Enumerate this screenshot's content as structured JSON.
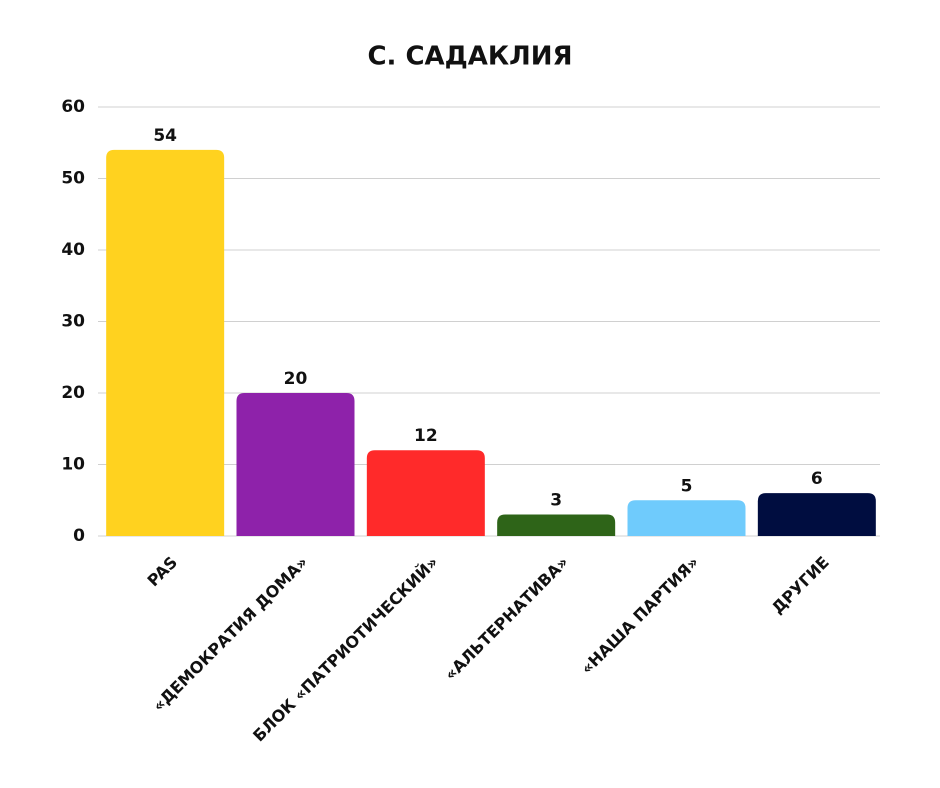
{
  "chart_data": {
    "type": "bar",
    "title": "С. САДАКЛИЯ",
    "categories": [
      "PAS",
      "«ДЕМОКРАТИЯ ДОМА»",
      "БЛОК «ПАТРИОТИЧЕСКИЙ»",
      "«АЛЬТЕРНАТИВА»",
      "«НАША ПАРТИЯ»",
      "ДРУГИЕ"
    ],
    "values": [
      54,
      20,
      12,
      3,
      5,
      6
    ],
    "colors": [
      "#ffd21f",
      "#8e22aa",
      "#ff2a2a",
      "#2e6418",
      "#6fcbfc",
      "#000d40"
    ],
    "ylim": [
      0,
      60
    ],
    "yticks": [
      0,
      10,
      20,
      30,
      40,
      50,
      60
    ],
    "grid": true
  }
}
